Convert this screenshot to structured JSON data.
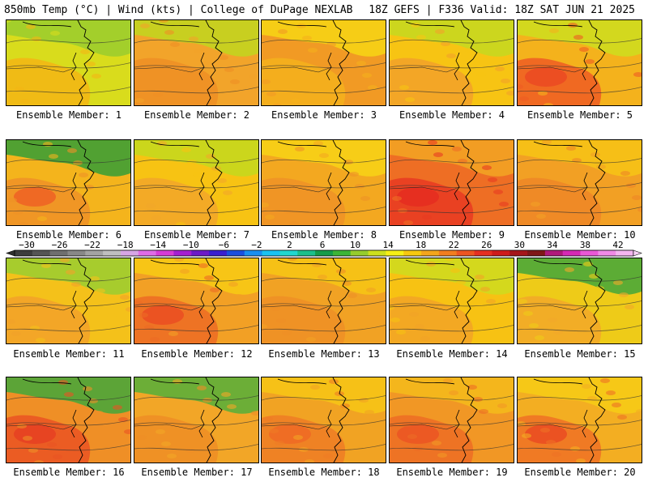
{
  "header": {
    "left_title": "850mb Temp (°C) | Wind (kts) | College of DuPage NEXLAB",
    "right_title": "18Z GEFS | F336 Valid: 18Z SAT JUN 21 2025"
  },
  "members": [
    {
      "label": "Ensemble Member: 1",
      "base": "#d9dc1c",
      "warm": "#f3b514",
      "cool": "#9ccd2e",
      "spots": []
    },
    {
      "label": "Ensemble Member: 2",
      "base": "#f2a42a",
      "warm": "#ee8f25",
      "cool": "#c3d41f",
      "spots": []
    },
    {
      "label": "Ensemble Member: 3",
      "base": "#f19a24",
      "warm": "#f5b11c",
      "cool": "#f6d315",
      "spots": []
    },
    {
      "label": "Ensemble Member: 4",
      "base": "#f7c413",
      "warm": "#f2a12a",
      "cool": "#c7d820",
      "spots": []
    },
    {
      "label": "Ensemble Member: 5",
      "base": "#f4b21c",
      "warm": "#ee5c23",
      "cool": "#cfdb1f",
      "spots": [
        "#eb4a22"
      ]
    },
    {
      "label": "Ensemble Member: 6",
      "base": "#f4b41c",
      "warm": "#ef9127",
      "cool": "#3f9e35",
      "spots": [
        "#ee6224"
      ]
    },
    {
      "label": "Ensemble Member: 7",
      "base": "#f7c313",
      "warm": "#f2a62a",
      "cool": "#c5d81e",
      "spots": []
    },
    {
      "label": "Ensemble Member: 8",
      "base": "#f3a820",
      "warm": "#ef9227",
      "cool": "#f7d016",
      "spots": []
    },
    {
      "label": "Ensemble Member: 9",
      "base": "#ee6e24",
      "warm": "#e83a22",
      "cool": "#f2a224",
      "spots": [
        "#e52d20"
      ]
    },
    {
      "label": "Ensemble Member: 10",
      "base": "#f2a024",
      "warm": "#ef8627",
      "cool": "#f6c216",
      "spots": []
    },
    {
      "label": "Ensemble Member: 11",
      "base": "#f4c11a",
      "warm": "#f2a12a",
      "cool": "#9fcd30",
      "spots": []
    },
    {
      "label": "Ensemble Member: 12",
      "base": "#f2a025",
      "warm": "#ed6b24",
      "cool": "#f7c915",
      "spots": [
        "#ea4d22"
      ]
    },
    {
      "label": "Ensemble Member: 13",
      "base": "#f1a224",
      "warm": "#ef8f26",
      "cool": "#f6c415",
      "spots": []
    },
    {
      "label": "Ensemble Member: 14",
      "base": "#f7c213",
      "warm": "#f2a327",
      "cool": "#cfda1f",
      "spots": []
    },
    {
      "label": "Ensemble Member: 15",
      "base": "#eecb18",
      "warm": "#f2a829",
      "cool": "#4ba838",
      "spots": []
    },
    {
      "label": "Ensemble Member: 16",
      "base": "#ef8f26",
      "warm": "#ea5323",
      "cool": "#4ba63a",
      "spots": [
        "#e64022"
      ]
    },
    {
      "label": "Ensemble Member: 17",
      "base": "#f2a627",
      "warm": "#ef8d26",
      "cool": "#5daf3a",
      "spots": []
    },
    {
      "label": "Ensemble Member: 18",
      "base": "#f1a323",
      "warm": "#ee7c25",
      "cool": "#f6c416",
      "spots": [
        "#ee6a24"
      ]
    },
    {
      "label": "Ensemble Member: 19",
      "base": "#f19725",
      "warm": "#ed6c24",
      "cool": "#f4b91c",
      "spots": [
        "#eb5523"
      ]
    },
    {
      "label": "Ensemble Member: 20",
      "base": "#f3ae22",
      "warm": "#ee7125",
      "cool": "#f6cb16",
      "spots": [
        "#ea4b22"
      ]
    }
  ],
  "colorbar": {
    "labels": [
      "−30",
      "−26",
      "−22",
      "−18",
      "−14",
      "−10",
      "−6",
      "−2",
      "2",
      "6",
      "10",
      "14",
      "18",
      "22",
      "26",
      "30",
      "34",
      "38",
      "42"
    ],
    "colors": [
      "#3d3d3d",
      "#555555",
      "#6f6f6f",
      "#888888",
      "#a3a3a3",
      "#bfbfbf",
      "#d7a6e6",
      "#e06be6",
      "#d73bd6",
      "#a51fd1",
      "#6c19c7",
      "#3a1fd0",
      "#1b4fe0",
      "#1a8ff0",
      "#1ac3f3",
      "#21d7cf",
      "#1cc08a",
      "#159c4a",
      "#3cb537",
      "#96cc2d",
      "#cde01e",
      "#f6f016",
      "#f7c80f",
      "#f4a51c",
      "#f27d20",
      "#ed5522",
      "#e62f22",
      "#cf1b1b",
      "#a5161a",
      "#7f1717",
      "#b0197b",
      "#d629b4",
      "#eb58d6",
      "#f18ae6",
      "#f5b6f0"
    ]
  }
}
